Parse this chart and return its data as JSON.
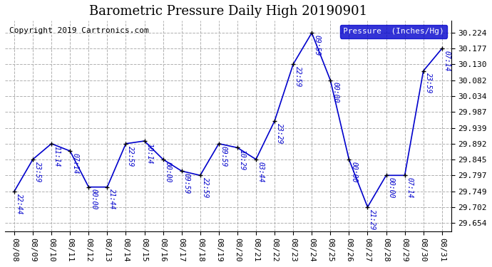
{
  "title": "Barometric Pressure Daily High 20190901",
  "copyright": "Copyright 2019 Cartronics.com",
  "legend_label": "Pressure  (Inches/Hg)",
  "line_color": "#0000cc",
  "marker_color": "#000000",
  "background_color": "#ffffff",
  "grid_color": "#b0b0b0",
  "dates": [
    "08/08",
    "08/09",
    "08/10",
    "08/11",
    "08/12",
    "08/13",
    "08/14",
    "08/15",
    "08/16",
    "08/17",
    "08/18",
    "08/19",
    "08/20",
    "08/21",
    "08/22",
    "08/23",
    "08/24",
    "08/25",
    "08/26",
    "08/27",
    "08/28",
    "08/29",
    "08/30",
    "08/31"
  ],
  "values": [
    29.749,
    29.845,
    29.892,
    29.87,
    29.762,
    29.762,
    29.892,
    29.9,
    29.845,
    29.81,
    29.797,
    29.892,
    29.88,
    29.845,
    29.96,
    30.13,
    30.224,
    30.082,
    29.845,
    29.702,
    29.797,
    29.797,
    30.11,
    30.177
  ],
  "annotations": [
    "22:44",
    "23:59",
    "11:14",
    "07:14",
    "00:00",
    "21:44",
    "22:59",
    "10:14",
    "00:00",
    "09:59",
    "22:59",
    "09:59",
    "10:29",
    "03:44",
    "23:29",
    "22:59",
    "09:59",
    "00:00",
    "00:00",
    "21:29",
    "00:00",
    "07:14",
    "23:59",
    "07:14"
  ],
  "ylim_min": 29.63,
  "ylim_max": 30.26,
  "yticks": [
    29.654,
    29.702,
    29.749,
    29.797,
    29.845,
    29.892,
    29.939,
    29.987,
    30.034,
    30.082,
    30.13,
    30.177,
    30.224
  ],
  "title_fontsize": 13,
  "copyright_fontsize": 8,
  "annotation_fontsize": 7,
  "ylabel_fontsize": 8
}
